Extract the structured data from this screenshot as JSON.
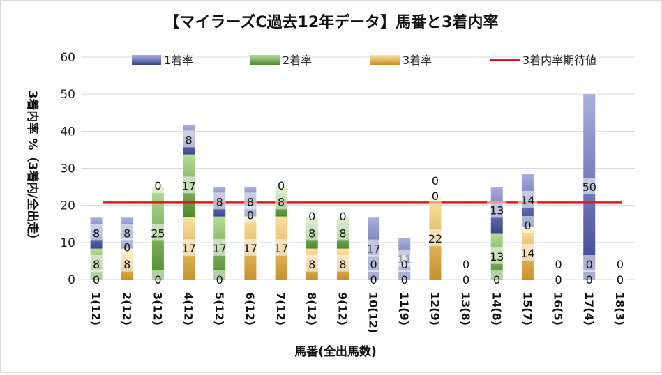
{
  "colors": {
    "s1": "#3c4590",
    "s1_light": "#a9b0dc",
    "s2": "#4f8a2f",
    "s2_light": "#b4dc96",
    "s3": "#c8902a",
    "s3_light": "#fbe2a2",
    "line": "#e3161a",
    "grid": "#d9d9d9"
  },
  "chart_data": {
    "type": "bar",
    "stacked": true,
    "title": "【マイラーズC過去12年データ】馬番と3着内率",
    "xlabel": "馬番(全出馬数)",
    "ylabel": "3着内率 %（3着内/全出走）",
    "ylim": [
      0,
      60
    ],
    "yticks": [
      0,
      10,
      20,
      30,
      40,
      50,
      60
    ],
    "grid": true,
    "legend_position": "top",
    "categories": [
      "1(12)",
      "2(12)",
      "3(12)",
      "4(12)",
      "5(12)",
      "6(12)",
      "7(12)",
      "8(12)",
      "9(12)",
      "10(12)",
      "11(9)",
      "12(9)",
      "13(8)",
      "14(8)",
      "15(7)",
      "16(5)",
      "17(4)",
      "18(3)"
    ],
    "series": [
      {
        "name": "1着率",
        "values": [
          8,
          8,
          0,
          8,
          8,
          8,
          0,
          0,
          0,
          17,
          11,
          0,
          0,
          13,
          14,
          0,
          50,
          0
        ]
      },
      {
        "name": "2着率",
        "values": [
          8,
          0,
          25,
          17,
          17,
          0,
          8,
          8,
          8,
          0,
          0,
          0,
          0,
          13,
          0,
          0,
          0,
          0
        ]
      },
      {
        "name": "3着率",
        "values": [
          0,
          8,
          0,
          17,
          0,
          17,
          17,
          8,
          8,
          0,
          0,
          22,
          0,
          0,
          14,
          0,
          0,
          0
        ]
      }
    ],
    "bar_totals": [
      16.7,
      16.7,
      25,
      41.7,
      25,
      25,
      25,
      16.7,
      16.7,
      16.7,
      11.1,
      22.2,
      0,
      25,
      28.6,
      0,
      50,
      0
    ],
    "reference_line": {
      "name": "3着内率期待値",
      "value": 20.8
    }
  }
}
